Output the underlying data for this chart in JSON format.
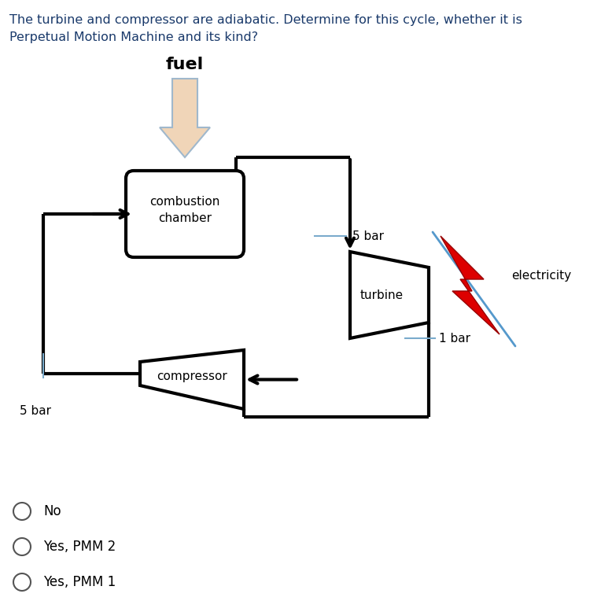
{
  "title_line1": "The turbine and compressor are adiabatic. Determine for this cycle, whether it is",
  "title_line2": "Perpetual Motion Machine and its kind?",
  "title_color": "#1a3a6b",
  "title_fontsize": 11.5,
  "background_color": "#ffffff",
  "fuel_label": "fuel",
  "combustion_label": "combustion\nchamber",
  "turbine_label": "turbine",
  "compressor_label": "compressor",
  "electricity_label": "electricity",
  "bar5_label1": "5 bar",
  "bar1_label": "1 bar",
  "bar5_label2": "5 bar",
  "options": [
    "No",
    "Yes, PMM 2",
    "Yes, PMM 1"
  ],
  "fuel_arrow_color": "#f0d5b8",
  "fuel_arrow_edge": "#a0b8cc",
  "line_color": "#000000",
  "electricity_red": "#dd0000",
  "electricity_blue": "#5599cc",
  "tick_color": "#7aabcc"
}
